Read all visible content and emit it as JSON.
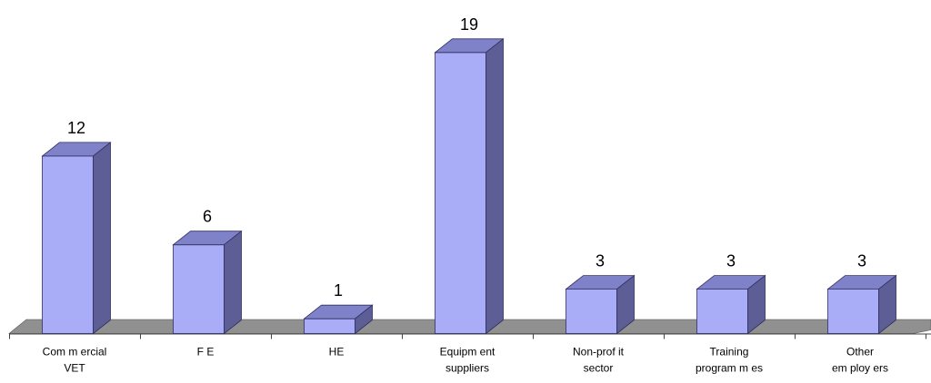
{
  "chart_data": {
    "type": "bar",
    "title": "",
    "categories": [
      [
        "Com m ercial",
        "VET"
      ],
      [
        "F E"
      ],
      [
        "HE"
      ],
      [
        "Equipm ent",
        "suppliers"
      ],
      [
        "Non-prof it",
        "sector"
      ],
      [
        "Training",
        "program m es"
      ],
      [
        "Other",
        "em ploy ers"
      ]
    ],
    "values": [
      12,
      6,
      1,
      19,
      3,
      3,
      3
    ],
    "xlabel": "",
    "ylabel": "",
    "ylim": [
      0,
      20
    ],
    "grid": false,
    "legend": "none",
    "style": "3d-column",
    "colors": {
      "front": "#a9acf7",
      "top": "#7f82c8",
      "side": "#5c5e95",
      "floor": "#909090"
    }
  }
}
